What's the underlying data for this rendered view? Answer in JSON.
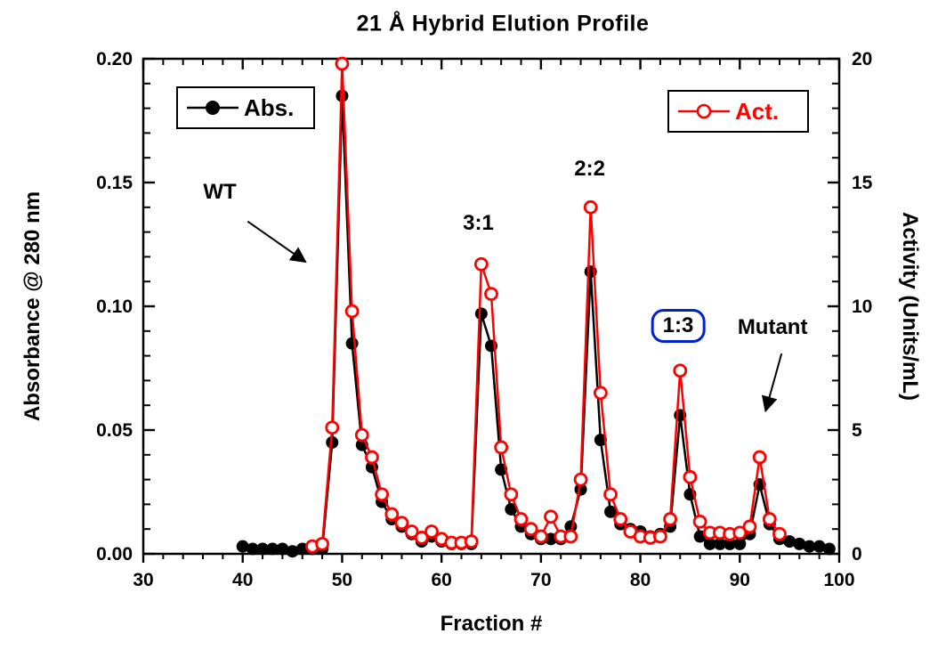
{
  "title": "21 Å Hybrid  Elution Profile",
  "legend": {
    "abs_label": "Abs.",
    "act_label": "Act."
  },
  "colors": {
    "abs": "#000000",
    "act": "#ff0000",
    "annotation_box": "#0022cc"
  },
  "chart_data": {
    "type": "line",
    "title": "21 Å Hybrid  Elution Profile",
    "xlabel": "Fraction #",
    "ylabel_left": "Absorbance @ 280 nm",
    "ylabel_right": "Activity  (Units/mL)",
    "xlim": [
      30,
      100
    ],
    "ylim_left": [
      0,
      0.2
    ],
    "ylim_right": [
      0,
      20
    ],
    "grid": false,
    "x_major_ticks": [
      30,
      40,
      50,
      60,
      70,
      80,
      90,
      100
    ],
    "x_minor_step": 2,
    "y_left_major_ticks": [
      0.0,
      0.05,
      0.1,
      0.15,
      0.2
    ],
    "y_left_tick_labels": [
      "0.00",
      "0.05",
      "0.10",
      "0.15",
      "0.20"
    ],
    "y_left_minor_step": 0.01,
    "y_right_major_ticks": [
      0,
      5,
      10,
      15,
      20
    ],
    "y_right_tick_labels": [
      "0",
      "5",
      "10",
      "15",
      "20"
    ],
    "y_right_minor_step": 1,
    "series": [
      {
        "name": "Abs.",
        "axis": "left",
        "color": "#000000",
        "marker": "filled-circle",
        "x": [
          40,
          41,
          42,
          43,
          44,
          45,
          46,
          47,
          48,
          49,
          50,
          51,
          52,
          53,
          54,
          55,
          56,
          57,
          58,
          59,
          60,
          61,
          62,
          63,
          64,
          65,
          66,
          67,
          68,
          69,
          70,
          71,
          72,
          73,
          74,
          75,
          76,
          77,
          78,
          79,
          80,
          81,
          82,
          83,
          84,
          85,
          86,
          87,
          88,
          89,
          90,
          91,
          92,
          93,
          94,
          95,
          96,
          97,
          98,
          99
        ],
        "y": [
          0.003,
          0.002,
          0.002,
          0.002,
          0.002,
          0.001,
          0.002,
          0.002,
          0.002,
          0.045,
          0.185,
          0.085,
          0.044,
          0.035,
          0.021,
          0.014,
          0.011,
          0.008,
          0.005,
          0.007,
          0.005,
          0.004,
          0.004,
          0.004,
          0.097,
          0.084,
          0.034,
          0.018,
          0.011,
          0.008,
          0.006,
          0.006,
          0.006,
          0.011,
          0.026,
          0.114,
          0.046,
          0.017,
          0.012,
          0.01,
          0.009,
          0.007,
          0.008,
          0.011,
          0.056,
          0.024,
          0.007,
          0.004,
          0.004,
          0.004,
          0.004,
          0.008,
          0.028,
          0.012,
          0.006,
          0.005,
          0.004,
          0.003,
          0.003,
          0.002
        ]
      },
      {
        "name": "Act.",
        "axis": "right",
        "color": "#ff0000",
        "marker": "open-circle",
        "x": [
          47,
          48,
          49,
          50,
          51,
          52,
          53,
          54,
          55,
          56,
          57,
          58,
          59,
          60,
          61,
          62,
          63,
          64,
          65,
          66,
          67,
          68,
          69,
          70,
          71,
          72,
          73,
          74,
          75,
          76,
          77,
          78,
          79,
          80,
          81,
          82,
          83,
          84,
          85,
          86,
          87,
          88,
          89,
          90,
          91,
          92,
          93,
          94
        ],
        "y": [
          0.3,
          0.4,
          5.1,
          19.8,
          9.8,
          4.8,
          3.9,
          2.4,
          1.6,
          1.25,
          0.9,
          0.65,
          0.9,
          0.6,
          0.45,
          0.45,
          0.5,
          11.7,
          10.5,
          4.3,
          2.4,
          1.4,
          1.0,
          0.7,
          1.5,
          0.7,
          0.7,
          3.0,
          14.0,
          6.5,
          2.4,
          1.4,
          0.9,
          0.7,
          0.65,
          0.7,
          1.4,
          7.4,
          3.1,
          1.3,
          0.85,
          0.85,
          0.8,
          0.85,
          1.1,
          3.9,
          1.4,
          0.8
        ]
      }
    ],
    "annotations": [
      {
        "id": "wt",
        "text": "WT",
        "x": 37.7,
        "y": 0.146,
        "boxed": false
      },
      {
        "id": "ratio-3-1",
        "text": "3:1",
        "x": 63.7,
        "y": 0.1335,
        "boxed": false
      },
      {
        "id": "ratio-2-2",
        "text": "2:2",
        "x": 74.9,
        "y": 0.1555,
        "boxed": false
      },
      {
        "id": "ratio-1-3",
        "text": "1:3",
        "x": 83.8,
        "y": 0.092,
        "boxed": true
      },
      {
        "id": "mutant",
        "text": "Mutant",
        "x": 93.3,
        "y": 0.0915,
        "boxed": false
      }
    ],
    "arrows": [
      {
        "id": "wt-arrow",
        "from": [
          40.5,
          0.1343
        ],
        "to": [
          46.3,
          0.118
        ]
      },
      {
        "id": "mutant-arrow",
        "from": [
          94.2,
          0.0809
        ],
        "to": [
          92.6,
          0.0578
        ]
      }
    ]
  }
}
